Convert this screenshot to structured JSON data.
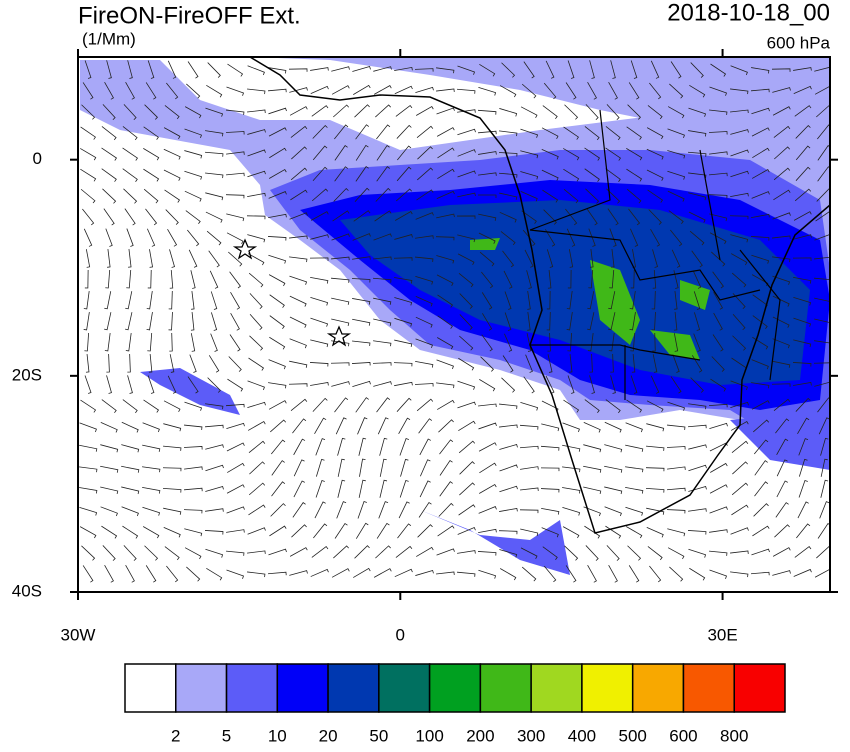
{
  "title": "FireON-FireOFF Ext.",
  "units": "(1/Mm)",
  "date": "2018-10-18_00",
  "level": "600 hPa",
  "map": {
    "lon_range": [
      -30,
      40
    ],
    "lat_range": [
      -40,
      9.5
    ],
    "lon_ticks": [
      {
        "value": -30,
        "label": "30W"
      },
      0,
      {
        "value": 30,
        "label": "30E"
      }
    ],
    "lat_ticks": [
      0,
      {
        "value": -20,
        "label": "20S"
      },
      {
        "value": -40,
        "label": "40S"
      }
    ]
  },
  "colorbar": {
    "levels": [
      2,
      5,
      10,
      20,
      50,
      100,
      200,
      300,
      400,
      500,
      600,
      800
    ],
    "colors": [
      "#ffffff",
      "#a8a8f8",
      "#5c5cf8",
      "#0000f8",
      "#0038b0",
      "#007060",
      "#00a020",
      "#40b818",
      "#a0d820",
      "#f0f000",
      "#f8a800",
      "#f85800",
      "#f80000"
    ]
  }
}
